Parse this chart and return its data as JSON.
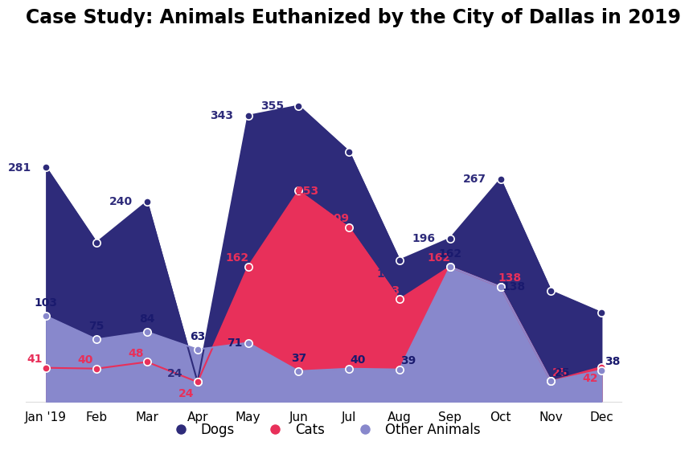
{
  "title": "Case Study: Animals Euthanized by the City of Dallas in 2019",
  "months": [
    "Jan '19",
    "Feb",
    "Mar",
    "Apr",
    "May",
    "Jun",
    "Jul",
    "Aug",
    "Sep",
    "Oct",
    "Nov",
    "Dec"
  ],
  "dogs": [
    281,
    191,
    240,
    24,
    343,
    355,
    300,
    170,
    196,
    267,
    133,
    107
  ],
  "cats": [
    41,
    40,
    48,
    24,
    162,
    253,
    209,
    123,
    162,
    138,
    25,
    42
  ],
  "other": [
    103,
    75,
    84,
    63,
    71,
    37,
    40,
    39,
    162,
    138,
    25,
    38
  ],
  "dog_color": "#2e2b7a",
  "cat_color": "#e8305a",
  "other_color": "#8888cc",
  "background_color": "#ffffff",
  "title_fontsize": 17,
  "legend_fontsize": 12,
  "label_fontsize": 10,
  "ylim_max": 430
}
